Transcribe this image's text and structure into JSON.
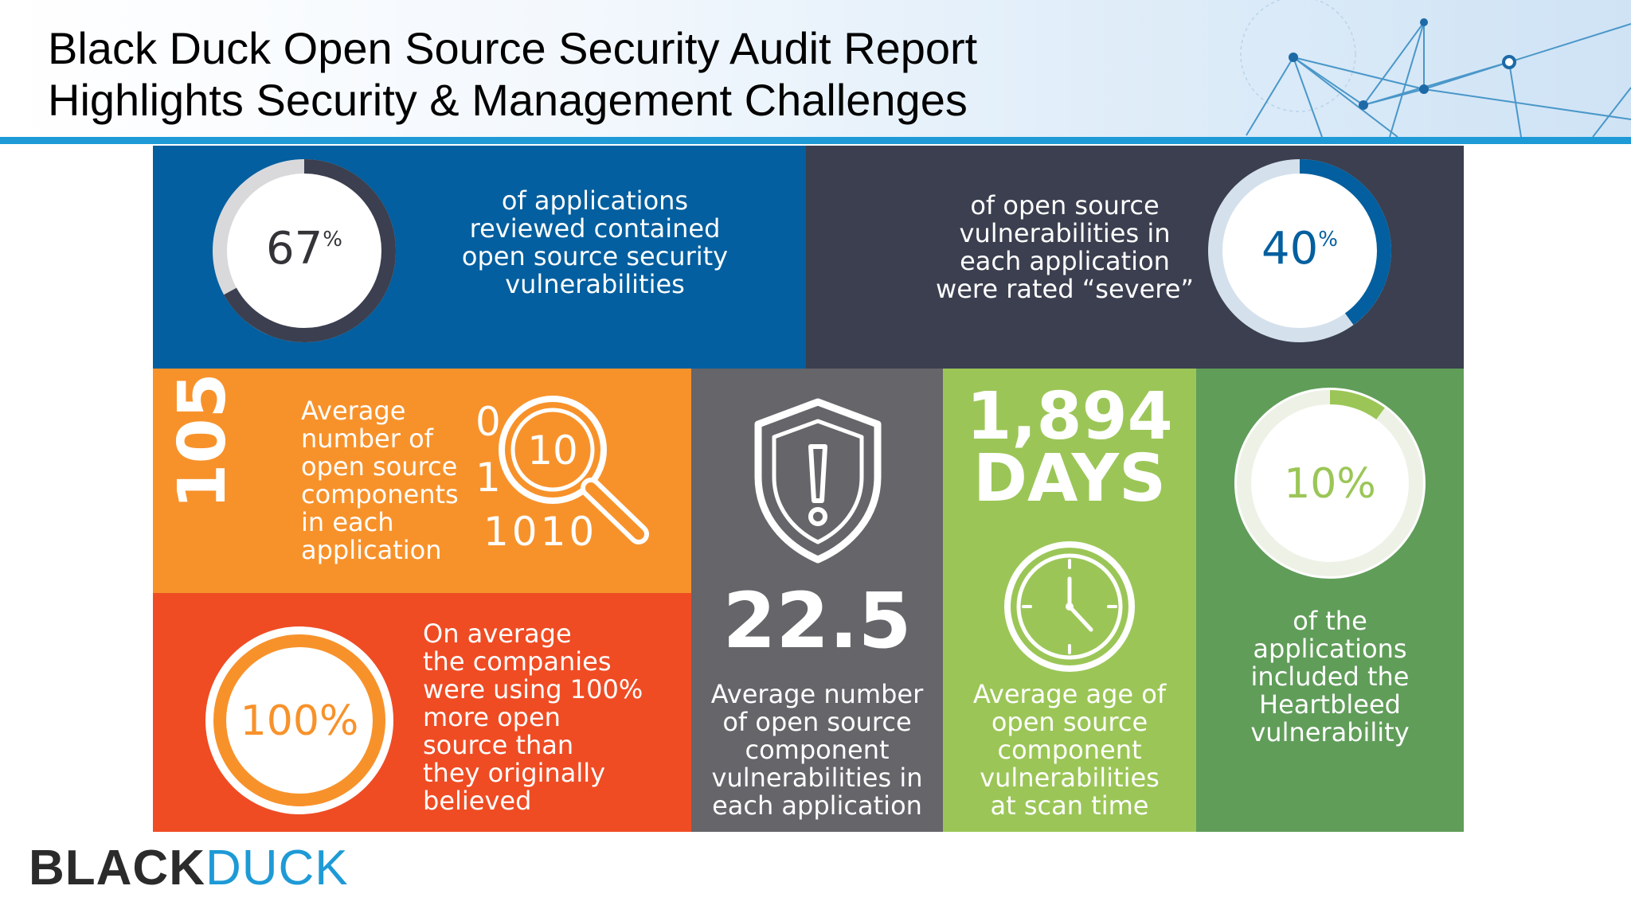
{
  "title": {
    "line1": "Black Duck Open Source Security Audit Report",
    "line2": "Highlights Security & Management Challenges"
  },
  "colors": {
    "header_rule": "#1e9ad6",
    "blue_panel": "#035f9f",
    "navy_panel": "#3b3f4f",
    "orange_panel": "#f7922b",
    "red_panel": "#ef4c24",
    "gray_panel": "#66656a",
    "lime_panel": "#9bc657",
    "green_panel": "#609d59"
  },
  "stats": {
    "vulnerable_apps": {
      "value": "67",
      "unit": "%",
      "fraction": 0.67,
      "text": [
        "of applications",
        "reviewed contained",
        "open source security",
        "vulnerabilities"
      ]
    },
    "severe": {
      "value": "40",
      "unit": "%",
      "fraction": 0.4,
      "text": [
        "of open source",
        "vulnerabilities in",
        "each application",
        "were rated “severe”"
      ]
    },
    "components": {
      "value": "105",
      "text": [
        "Average",
        "number of",
        "open source",
        "components",
        "in each",
        "application"
      ],
      "binary": [
        "0",
        "1",
        "1010"
      ],
      "lens_value": "10",
      "icon": "magnifier-icon"
    },
    "underestimate": {
      "value": "100%",
      "text": [
        "On average",
        "the companies",
        "were using 100%",
        "more open",
        "source than",
        "they originally",
        "believed"
      ]
    },
    "vulns_per_app": {
      "value": "22.5",
      "text": [
        "Average number",
        "of open source",
        "component",
        "vulnerabilities in",
        "each application"
      ],
      "icon": "shield-alert-icon"
    },
    "age": {
      "value": "1,894",
      "unit": "DAYS",
      "text": [
        "Average age of",
        "open source",
        "component",
        "vulnerabilities",
        "at scan time"
      ],
      "icon": "clock-icon"
    },
    "heartbleed": {
      "value": "10%",
      "fraction": 0.1,
      "text": [
        "of the",
        "applications",
        "included the",
        "Heartbleed",
        "vulnerability"
      ]
    }
  },
  "logo": {
    "black": "BLACK",
    "duck": "DUCK"
  }
}
